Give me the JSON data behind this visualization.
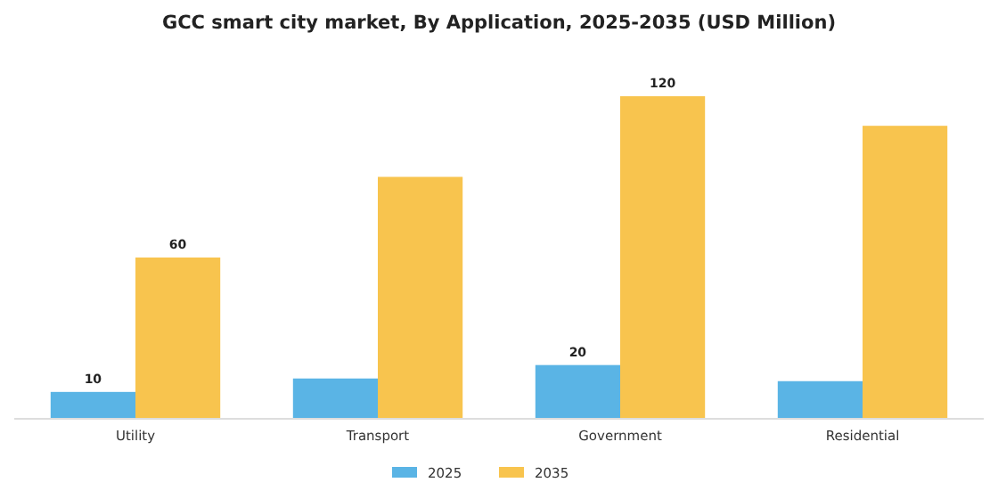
{
  "chart_data": {
    "type": "bar",
    "title": "GCC smart city market, By Application, 2025-2035 (USD Million)",
    "categories": [
      "Utility",
      "Transport",
      "Government",
      "Residential"
    ],
    "series": [
      {
        "name": "2025",
        "color": "#5ab4e5",
        "values": [
          10,
          15,
          20,
          14
        ],
        "value_labels": [
          "10",
          null,
          "20",
          null
        ]
      },
      {
        "name": "2035",
        "color": "#f8c44e",
        "values": [
          60,
          90,
          120,
          109
        ],
        "value_labels": [
          "60",
          null,
          "120",
          null
        ]
      }
    ],
    "ylim": [
      0,
      120
    ],
    "grid": false,
    "legend": "bottom"
  }
}
